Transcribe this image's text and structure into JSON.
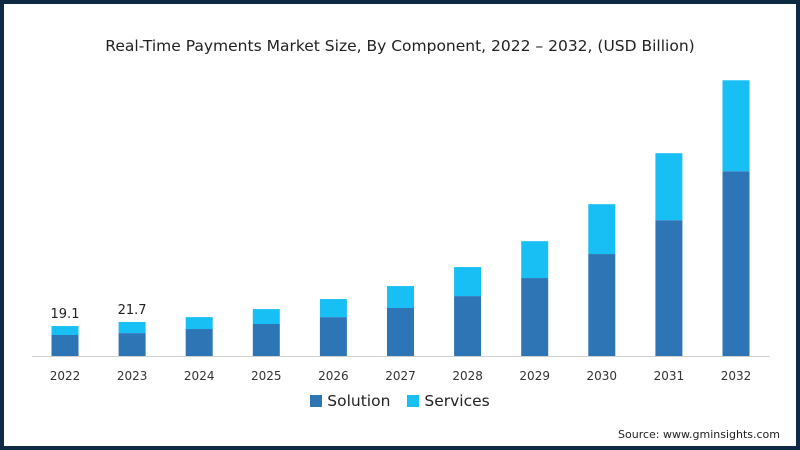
{
  "chart_data": {
    "type": "bar",
    "stacked": true,
    "title": "Real-Time Payments Market Size, By Component, 2022 – 2032, (USD Billion)",
    "xlabel": "",
    "ylabel": "",
    "ylim": [
      0,
      190
    ],
    "grid": false,
    "legend_position": "bottom",
    "categories": [
      "2022",
      "2023",
      "2024",
      "2025",
      "2026",
      "2027",
      "2028",
      "2029",
      "2030",
      "2031",
      "2032"
    ],
    "series": [
      {
        "name": "Solution",
        "color": "#2e75b6",
        "values": [
          13.4,
          14.6,
          17.2,
          20.4,
          24.8,
          30.6,
          38.2,
          49.7,
          65.0,
          86.6,
          117.8
        ]
      },
      {
        "name": "Services",
        "color": "#17bff5",
        "values": [
          5.7,
          7.1,
          7.6,
          9.5,
          11.5,
          14.0,
          18.5,
          23.5,
          31.8,
          42.7,
          58.0
        ]
      }
    ],
    "data_labels": [
      {
        "category": "2022",
        "text": "19.1"
      },
      {
        "category": "2023",
        "text": "21.7"
      }
    ]
  },
  "source": "Source: www.gminsights.com"
}
